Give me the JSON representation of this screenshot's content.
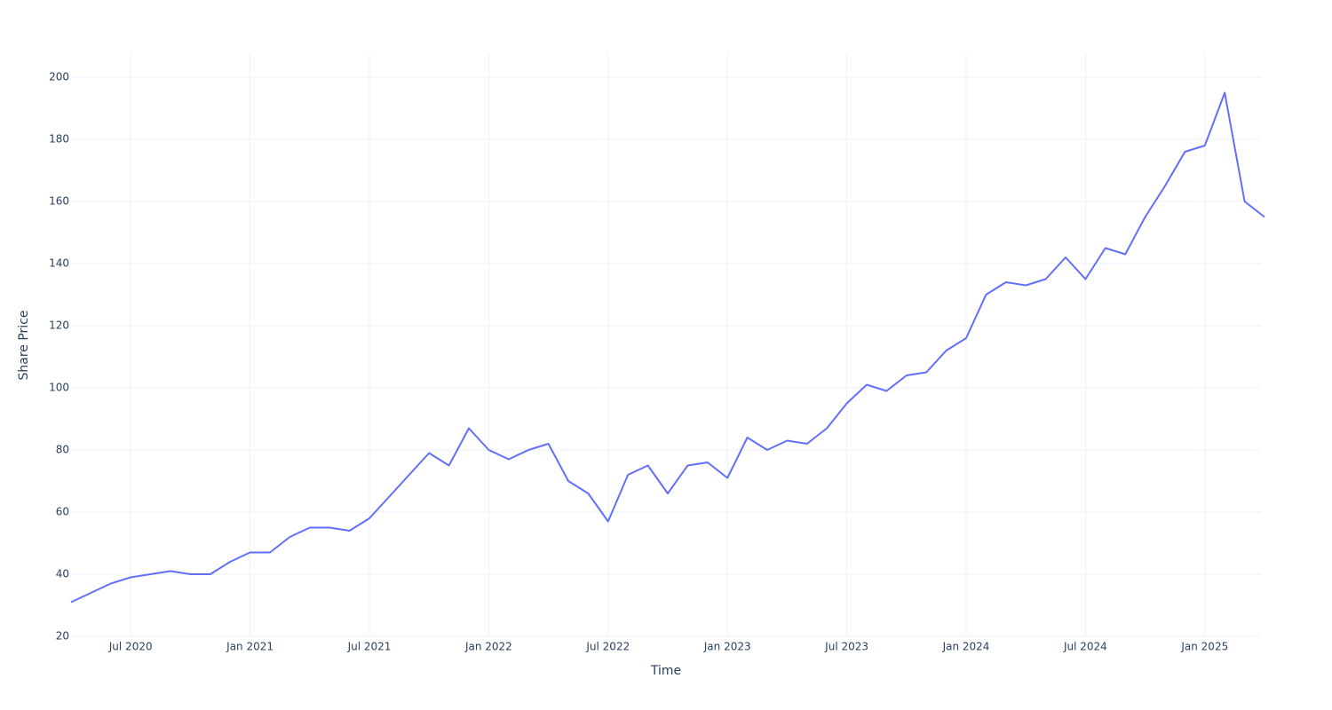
{
  "chart_data": {
    "type": "line",
    "x_label": "Time",
    "y_label": "Share Price",
    "x": [
      "2020-04",
      "2020-05",
      "2020-06",
      "2020-07",
      "2020-08",
      "2020-09",
      "2020-10",
      "2020-11",
      "2020-12",
      "2021-01",
      "2021-02",
      "2021-03",
      "2021-04",
      "2021-05",
      "2021-06",
      "2021-07",
      "2021-08",
      "2021-09",
      "2021-10",
      "2021-11",
      "2021-12",
      "2022-01",
      "2022-02",
      "2022-03",
      "2022-04",
      "2022-05",
      "2022-06",
      "2022-07",
      "2022-08",
      "2022-09",
      "2022-10",
      "2022-11",
      "2022-12",
      "2023-01",
      "2023-02",
      "2023-03",
      "2023-04",
      "2023-05",
      "2023-06",
      "2023-07",
      "2023-08",
      "2023-09",
      "2023-10",
      "2023-11",
      "2023-12",
      "2024-01",
      "2024-02",
      "2024-03",
      "2024-04",
      "2024-05",
      "2024-06",
      "2024-07",
      "2024-08",
      "2024-09",
      "2024-10",
      "2024-11",
      "2024-12",
      "2025-01",
      "2025-02",
      "2025-03",
      "2025-04"
    ],
    "series": [
      {
        "name": "Share Price",
        "color": "#636efa",
        "values": [
          31,
          34,
          37,
          39,
          40,
          41,
          40,
          40,
          44,
          47,
          47,
          52,
          55,
          55,
          54,
          58,
          65,
          72,
          79,
          75,
          87,
          80,
          77,
          80,
          82,
          70,
          66,
          57,
          72,
          75,
          66,
          75,
          76,
          71,
          84,
          80,
          83,
          82,
          87,
          95,
          101,
          99,
          104,
          105,
          112,
          116,
          130,
          134,
          133,
          135,
          142,
          135,
          145,
          143,
          155,
          165,
          176,
          178,
          195,
          160,
          155
        ]
      }
    ],
    "xlim": [
      "2020-04",
      "2025-04"
    ],
    "xticks": [
      {
        "value": "2020-07",
        "label": "Jul 2020"
      },
      {
        "value": "2021-01",
        "label": "Jan 2021"
      },
      {
        "value": "2021-07",
        "label": "Jul 2021"
      },
      {
        "value": "2022-01",
        "label": "Jan 2022"
      },
      {
        "value": "2022-07",
        "label": "Jul 2022"
      },
      {
        "value": "2023-01",
        "label": "Jan 2023"
      },
      {
        "value": "2023-07",
        "label": "Jul 2023"
      },
      {
        "value": "2024-01",
        "label": "Jan 2024"
      },
      {
        "value": "2024-07",
        "label": "Jul 2024"
      },
      {
        "value": "2025-01",
        "label": "Jan 2025"
      }
    ],
    "ylim": [
      20,
      200
    ],
    "yticks": [
      20,
      40,
      60,
      80,
      100,
      120,
      140,
      160,
      180,
      200
    ],
    "grid": true
  }
}
